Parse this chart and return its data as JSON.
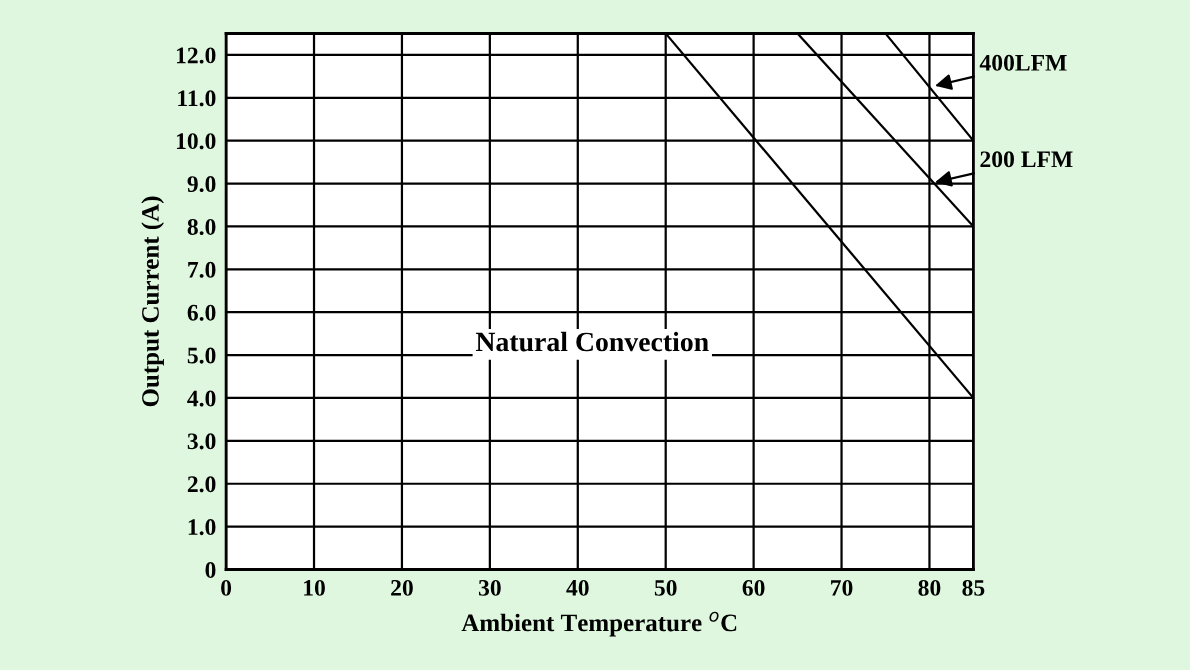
{
  "chart_data": {
    "type": "line",
    "xlabel": "Ambient Temperature $^{o}$C",
    "ylabel": "Output Current (A)",
    "xlim": [
      0,
      85
    ],
    "xticks": [
      0,
      10,
      20,
      30,
      40,
      50,
      60,
      70,
      80,
      85
    ],
    "ylim": [
      0,
      12.5
    ],
    "yticks": [
      0,
      {
        "value": 1,
        "label": "1.0"
      },
      {
        "value": 2,
        "label": "2.0"
      },
      {
        "value": 3,
        "label": "3.0"
      },
      {
        "value": 4,
        "label": "4.0"
      },
      {
        "value": 5,
        "label": "5.0"
      },
      {
        "value": 6,
        "label": "6.0"
      },
      {
        "value": 7,
        "label": "7.0"
      },
      {
        "value": 8,
        "label": "8.0"
      },
      {
        "value": 9,
        "label": "9.0"
      },
      {
        "value": 10,
        "label": "10.0"
      },
      {
        "value": 11,
        "label": "11.0"
      },
      {
        "value": 12,
        "label": "12.0"
      }
    ],
    "annotations": [
      {
        "text": "400LFM",
        "x": 80,
        "y": 11.25
      },
      {
        "text": "200 LFM",
        "x": 80,
        "y": 9.0
      },
      "Natural Convection"
    ],
    "grid": true,
    "legend": false,
    "marker": "none",
    "line_style": "solid",
    "series": [
      {
        "color": "#000000",
        "x": [
          50,
          85
        ],
        "values": [
          12.5,
          4.0
        ]
      },
      {
        "color": "#000000",
        "x": [
          65,
          85
        ],
        "values": [
          12.5,
          8.0
        ]
      },
      {
        "color": "#000000",
        "x": [
          75,
          85
        ],
        "values": [
          12.5,
          10.0
        ]
      }
    ]
  }
}
